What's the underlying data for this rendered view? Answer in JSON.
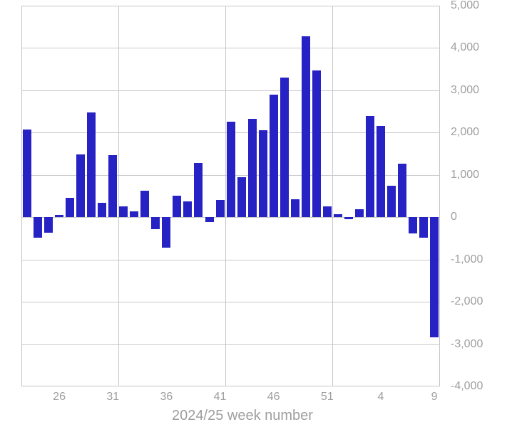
{
  "chart_data": {
    "type": "bar",
    "title": "",
    "xlabel": "2024/25 week number",
    "ylabel": "",
    "categories": [
      "23",
      "24",
      "25",
      "26",
      "27",
      "28",
      "29",
      "30",
      "31",
      "32",
      "33",
      "34",
      "35",
      "36",
      "37",
      "38",
      "39",
      "40",
      "41",
      "42",
      "43",
      "44",
      "45",
      "46",
      "47",
      "48",
      "49",
      "50",
      "51",
      "52",
      "1",
      "2",
      "3",
      "4",
      "5",
      "6",
      "7",
      "8",
      "9"
    ],
    "values": [
      2070,
      -480,
      -370,
      60,
      460,
      1480,
      2470,
      340,
      1470,
      260,
      130,
      630,
      -290,
      -720,
      510,
      380,
      1280,
      -120,
      410,
      2250,
      950,
      2330,
      2050,
      2890,
      3300,
      420,
      4270,
      3470,
      260,
      70,
      -50,
      190,
      2400,
      2150,
      750,
      1260,
      -390,
      -490,
      -2840
    ],
    "x_tick_labels_shown": [
      "26",
      "31",
      "36",
      "41",
      "46",
      "51",
      "4",
      "9"
    ],
    "x_tick_indices": [
      3,
      8,
      13,
      18,
      23,
      28,
      33,
      38
    ],
    "x_gridline_after_indices": [
      8,
      18,
      28
    ],
    "y_ticks": [
      5000,
      4000,
      3000,
      2000,
      1000,
      0,
      -1000,
      -2000,
      -3000,
      -4000
    ],
    "y_tick_labels": [
      "5,000",
      "4,000",
      "3,000",
      "2,000",
      "1,000",
      "0",
      "-1,000",
      "-2,000",
      "-3,000",
      "-4,000"
    ],
    "ylim": [
      -4000,
      5000
    ],
    "grid": true,
    "legend": "none",
    "bar_color": "#2722c4",
    "grid_color": "#c9c9c9",
    "label_color": "#9e9e9e",
    "background_color": "#ffffff"
  }
}
